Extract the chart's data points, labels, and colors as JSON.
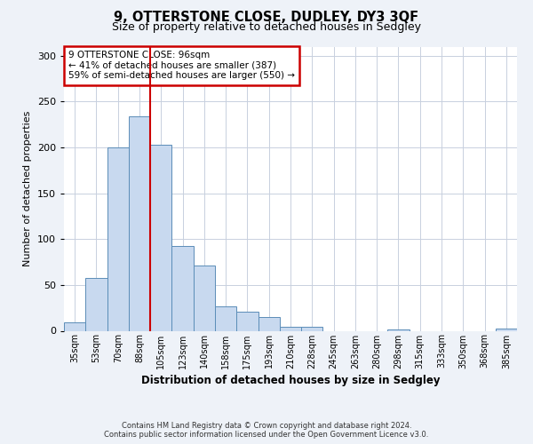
{
  "title": "9, OTTERSTONE CLOSE, DUDLEY, DY3 3QF",
  "subtitle": "Size of property relative to detached houses in Sedgley",
  "xlabel": "Distribution of detached houses by size in Sedgley",
  "ylabel": "Number of detached properties",
  "bar_labels": [
    "35sqm",
    "53sqm",
    "70sqm",
    "88sqm",
    "105sqm",
    "123sqm",
    "140sqm",
    "158sqm",
    "175sqm",
    "193sqm",
    "210sqm",
    "228sqm",
    "245sqm",
    "263sqm",
    "280sqm",
    "298sqm",
    "315sqm",
    "333sqm",
    "350sqm",
    "368sqm",
    "385sqm"
  ],
  "bar_values": [
    9,
    58,
    200,
    234,
    203,
    93,
    71,
    27,
    21,
    15,
    4,
    4,
    0,
    0,
    0,
    1,
    0,
    0,
    0,
    0,
    2
  ],
  "bar_color": "#c8d9ef",
  "bar_edge_color": "#5b8db8",
  "ylim": [
    0,
    310
  ],
  "yticks": [
    0,
    50,
    100,
    150,
    200,
    250,
    300
  ],
  "vline_x": 3.5,
  "vline_color": "#cc0000",
  "annotation_title": "9 OTTERSTONE CLOSE: 96sqm",
  "annotation_line1": "← 41% of detached houses are smaller (387)",
  "annotation_line2": "59% of semi-detached houses are larger (550) →",
  "box_edge_color": "#cc0000",
  "footer_line1": "Contains HM Land Registry data © Crown copyright and database right 2024.",
  "footer_line2": "Contains public sector information licensed under the Open Government Licence v3.0.",
  "bg_color": "#eef2f8",
  "plot_bg_color": "#ffffff",
  "grid_color": "#c8d0de"
}
